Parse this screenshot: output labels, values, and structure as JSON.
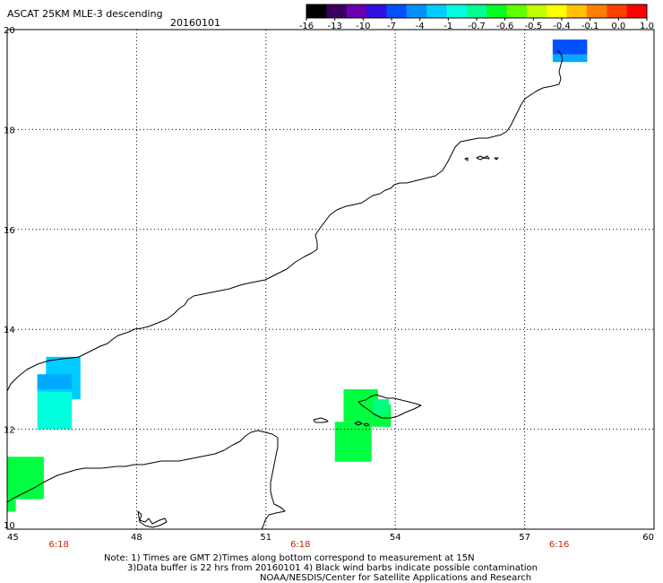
{
  "title": "ASCAT 25KM MLE-3 descending",
  "date": "20160101",
  "colorbar": {
    "tick_labels": [
      "-16",
      "-13",
      "-10",
      "-7",
      "-4",
      "-1",
      "-0.7",
      "-0.6",
      "-0.5",
      "-0.4",
      "-0.1",
      "0.0",
      "1.0"
    ],
    "colors": [
      "#000000",
      "#3a0060",
      "#6a00b0",
      "#3010e0",
      "#0050ff",
      "#0090ff",
      "#00ccff",
      "#00ffe0",
      "#00ff90",
      "#00ff20",
      "#60ff00",
      "#c0ff00",
      "#ffff00",
      "#ffc000",
      "#ff8000",
      "#ff4000",
      "#ff0000"
    ]
  },
  "map": {
    "lon_range": [
      45,
      60
    ],
    "lat_range": [
      10,
      20
    ],
    "lon_labels": [
      "45",
      "48",
      "51",
      "54",
      "57",
      "60"
    ],
    "lat_labels": [
      "10",
      "12",
      "14",
      "16",
      "18",
      "20"
    ],
    "time_labels": [
      "6:18",
      "6:18",
      "6:16"
    ],
    "time_color": "#cc2200"
  },
  "swaths": [
    {
      "color": "#00ccff",
      "cells": [
        [
          45.9,
          13.45,
          0.8,
          0.85
        ],
        [
          45.7,
          13.1,
          0.8,
          0.35
        ]
      ]
    },
    {
      "color": "#00aaff",
      "cells": [
        [
          45.7,
          13.1,
          0.8,
          0.3
        ]
      ]
    },
    {
      "color": "#00ffdd",
      "cells": [
        [
          45.7,
          12.75,
          0.8,
          0.75
        ]
      ]
    },
    {
      "color": "#00ff40",
      "cells": [
        [
          45.0,
          11.45,
          0.85,
          0.85
        ],
        [
          45.0,
          10.6,
          0.2,
          0.25
        ]
      ]
    },
    {
      "color": "#00ff40",
      "cells": [
        [
          52.8,
          12.8,
          0.8,
          0.65
        ],
        [
          52.6,
          12.15,
          0.85,
          0.8
        ],
        [
          53.4,
          12.5,
          0.5,
          0.45
        ]
      ]
    },
    {
      "color": "#00ff80",
      "cells": [
        [
          53.5,
          12.6,
          0.35,
          0.3
        ]
      ]
    },
    {
      "color": "#0050ff",
      "cells": [
        [
          57.65,
          19.8,
          0.8,
          0.3
        ]
      ]
    },
    {
      "color": "#00aaff",
      "cells": [
        [
          57.65,
          19.5,
          0.8,
          0.15
        ]
      ]
    }
  ],
  "notes": [
    "Note: 1) Times are GMT 2)Times along bottom correspond to measurement at 15N",
    "3)Data buffer is 22 hrs from 20160101 4) Black wind barbs indicate possible contamination",
    "NOAA/NESDIS/Center for Satellite Applications and Research"
  ]
}
